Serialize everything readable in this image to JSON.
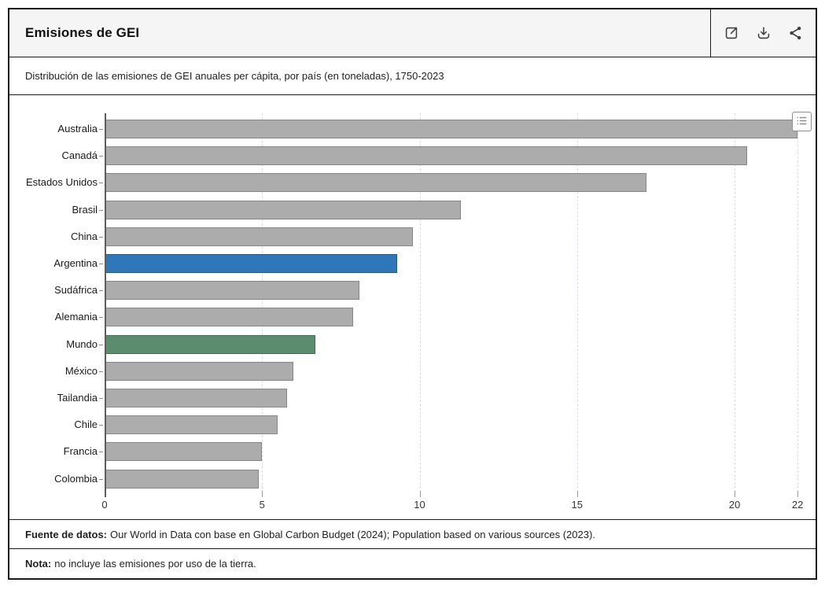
{
  "header": {
    "title": "Emisiones de GEI",
    "actions": [
      {
        "icon": "open-external-icon"
      },
      {
        "icon": "download-icon"
      },
      {
        "icon": "share-icon"
      }
    ]
  },
  "subtitle": "Distribución de las emisiones de GEI anuales per cápita, por país (en toneladas), 1750-2023",
  "chart_data": {
    "type": "bar",
    "orientation": "horizontal",
    "title": "Emisiones de GEI",
    "subtitle": "Distribución de las emisiones de GEI anuales per cápita, por país (en toneladas), 1750-2023",
    "categories": [
      "Australia",
      "Canadá",
      "Estados Unidos",
      "Brasil",
      "China",
      "Argentina",
      "Sudáfrica",
      "Alemania",
      "Mundo",
      "México",
      "Tailandia",
      "Chile",
      "Francia",
      "Colombia"
    ],
    "values": [
      22.0,
      20.4,
      17.2,
      11.3,
      9.8,
      9.3,
      8.1,
      7.9,
      6.7,
      6.0,
      5.8,
      5.5,
      5.0,
      4.9
    ],
    "xlabel": "",
    "ylabel": "",
    "xlim": [
      0,
      22
    ],
    "x_ticks": [
      0,
      5,
      10,
      15,
      20,
      22
    ],
    "grid": "vertical-dashed",
    "legend": "none",
    "bar_color": "#ACACAC",
    "highlights": {
      "Argentina": "#2F77B8",
      "Mundo": "#5C8C6E"
    },
    "grid_color": "#d9dde4",
    "axis_color": "#5d5d5d"
  },
  "footer": {
    "source_label": "Fuente de datos:",
    "source_text": "Our World in Data con base en Global Carbon Budget (2024); Population based on various sources (2023).",
    "note_label": "Nota:",
    "note_text": "no incluye las emisiones por uso de la tierra."
  }
}
